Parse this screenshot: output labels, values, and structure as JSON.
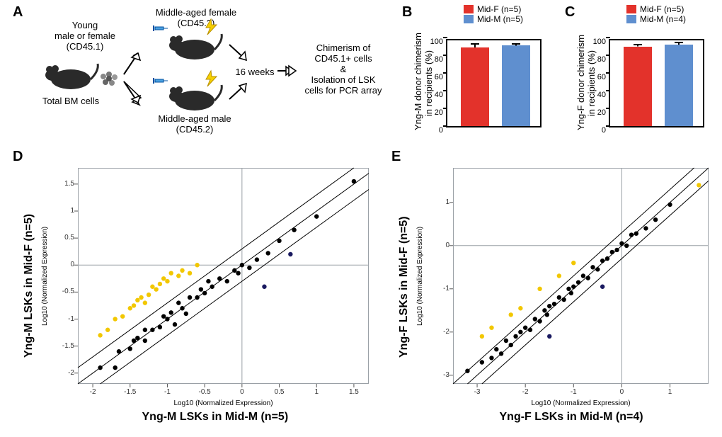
{
  "colors": {
    "red": "#e3322b",
    "blue": "#5f8fcf",
    "black": "#000000",
    "yellow": "#f2c700",
    "darkblue": "#1a1a60",
    "frame": "#9aa0a6",
    "bg": "#ffffff"
  },
  "labels": {
    "A": "A",
    "B": "B",
    "C": "C",
    "D": "D",
    "E": "E"
  },
  "panelA": {
    "donor_line1": "Young",
    "donor_line2": "male or female",
    "donor_line3": "(CD45.1)",
    "bm": "Total BM cells",
    "female_line1": "Middle-aged female",
    "female_line2": "(CD45.2)",
    "male_line1": "Middle-aged male",
    "male_line2": "(CD45.2)",
    "weeks": "16 weeks",
    "out_line1": "Chimerism of",
    "out_line2": "CD45.1+ cells",
    "out_line3": "&",
    "out_line4": "Isolation of LSK",
    "out_line5": "cells for PCR array"
  },
  "panelB": {
    "ylab": "Yng-M donor chimerism\nin recipients (%)",
    "legend": [
      {
        "label": "Mid-F (n=5)",
        "color": "#e3322b"
      },
      {
        "label": "Mid-M (n=5)",
        "color": "#5f8fcf"
      }
    ],
    "ymax": 100,
    "ytick": 20,
    "bars": [
      {
        "value": 89,
        "error": 4,
        "color": "#e3322b"
      },
      {
        "value": 91,
        "error": 2,
        "color": "#5f8fcf"
      }
    ]
  },
  "panelC": {
    "ylab": "Yng-F donor chimerism\nin recipients (%)",
    "legend": [
      {
        "label": "Mid-F (n=5)",
        "color": "#e3322b"
      },
      {
        "label": "Mid-M (n=4)",
        "color": "#5f8fcf"
      }
    ],
    "ymax": 100,
    "ytick": 20,
    "bars": [
      {
        "value": 90,
        "error": 2,
        "color": "#e3322b"
      },
      {
        "value": 92,
        "error": 2.5,
        "color": "#5f8fcf"
      }
    ]
  },
  "panelD": {
    "xlab": "Yng-M LSKs in Mid-M (n=5)",
    "ylab": "Yng-M LSKs in Mid-F (n=5)",
    "sub": "Log10 (Normalized Expression)",
    "xmin": -2.2,
    "xmax": 1.7,
    "ymin": -2.2,
    "ymax": 1.8,
    "ticks_x": [
      -2,
      -1.5,
      -1,
      -0.5,
      0,
      0.5,
      1,
      1.5
    ],
    "ticks_y": [
      -2,
      -1.5,
      -1,
      -0.5,
      0,
      0.5,
      1,
      1.5
    ],
    "points_black": [
      [
        -1.9,
        -1.9
      ],
      [
        -1.7,
        -1.9
      ],
      [
        -1.65,
        -1.6
      ],
      [
        -1.5,
        -1.55
      ],
      [
        -1.45,
        -1.4
      ],
      [
        -1.4,
        -1.35
      ],
      [
        -1.3,
        -1.4
      ],
      [
        -1.3,
        -1.2
      ],
      [
        -1.2,
        -1.2
      ],
      [
        -1.1,
        -1.15
      ],
      [
        -1.05,
        -0.95
      ],
      [
        -1.0,
        -1.0
      ],
      [
        -0.95,
        -0.88
      ],
      [
        -0.9,
        -1.1
      ],
      [
        -0.85,
        -0.7
      ],
      [
        -0.8,
        -0.8
      ],
      [
        -0.75,
        -0.9
      ],
      [
        -0.7,
        -0.6
      ],
      [
        -0.6,
        -0.6
      ],
      [
        -0.55,
        -0.45
      ],
      [
        -0.5,
        -0.52
      ],
      [
        -0.45,
        -0.3
      ],
      [
        -0.4,
        -0.4
      ],
      [
        -0.3,
        -0.25
      ],
      [
        -0.2,
        -0.3
      ],
      [
        -0.1,
        -0.1
      ],
      [
        -0.05,
        -0.15
      ],
      [
        0.0,
        0.0
      ],
      [
        0.1,
        -0.05
      ],
      [
        0.2,
        0.1
      ],
      [
        0.35,
        0.22
      ],
      [
        0.5,
        0.45
      ],
      [
        0.7,
        0.65
      ],
      [
        1.0,
        0.9
      ],
      [
        1.5,
        1.55
      ]
    ],
    "points_darkblue": [
      [
        0.3,
        -0.4
      ],
      [
        0.65,
        0.2
      ]
    ],
    "points_yellow": [
      [
        -1.9,
        -1.3
      ],
      [
        -1.8,
        -1.2
      ],
      [
        -1.7,
        -1.0
      ],
      [
        -1.6,
        -0.95
      ],
      [
        -1.5,
        -0.8
      ],
      [
        -1.45,
        -0.75
      ],
      [
        -1.4,
        -0.65
      ],
      [
        -1.35,
        -0.6
      ],
      [
        -1.3,
        -0.7
      ],
      [
        -1.25,
        -0.55
      ],
      [
        -1.2,
        -0.4
      ],
      [
        -1.15,
        -0.45
      ],
      [
        -1.1,
        -0.35
      ],
      [
        -1.05,
        -0.25
      ],
      [
        -1.0,
        -0.3
      ],
      [
        -0.95,
        -0.15
      ],
      [
        -0.85,
        -0.2
      ],
      [
        -0.8,
        -0.1
      ],
      [
        -0.7,
        -0.15
      ],
      [
        -0.6,
        0.0
      ]
    ]
  },
  "panelE": {
    "xlab": "Yng-F LSKs in Mid-M (n=4)",
    "ylab": "Yng-F LSKs in Mid-F (n=5)",
    "sub": "Log10 (Normalized Expression)",
    "xmin": -3.5,
    "xmax": 1.8,
    "ymin": -3.2,
    "ymax": 1.8,
    "ticks_x": [
      -3,
      -2,
      -1,
      0,
      1
    ],
    "ticks_y": [
      -3,
      -2,
      -1,
      0,
      1
    ],
    "points_black": [
      [
        -3.2,
        -2.9
      ],
      [
        -2.9,
        -2.7
      ],
      [
        -2.7,
        -2.6
      ],
      [
        -2.6,
        -2.4
      ],
      [
        -2.5,
        -2.5
      ],
      [
        -2.4,
        -2.2
      ],
      [
        -2.3,
        -2.3
      ],
      [
        -2.2,
        -2.1
      ],
      [
        -2.1,
        -2.0
      ],
      [
        -2.0,
        -1.9
      ],
      [
        -1.9,
        -1.95
      ],
      [
        -1.8,
        -1.7
      ],
      [
        -1.7,
        -1.75
      ],
      [
        -1.6,
        -1.5
      ],
      [
        -1.55,
        -1.6
      ],
      [
        -1.5,
        -1.4
      ],
      [
        -1.4,
        -1.35
      ],
      [
        -1.3,
        -1.2
      ],
      [
        -1.2,
        -1.25
      ],
      [
        -1.1,
        -1.0
      ],
      [
        -1.05,
        -1.1
      ],
      [
        -1.0,
        -0.95
      ],
      [
        -0.9,
        -0.85
      ],
      [
        -0.8,
        -0.7
      ],
      [
        -0.7,
        -0.75
      ],
      [
        -0.6,
        -0.5
      ],
      [
        -0.5,
        -0.55
      ],
      [
        -0.4,
        -0.35
      ],
      [
        -0.3,
        -0.3
      ],
      [
        -0.2,
        -0.15
      ],
      [
        -0.1,
        -0.1
      ],
      [
        0.0,
        0.05
      ],
      [
        0.1,
        0.0
      ],
      [
        0.2,
        0.25
      ],
      [
        0.3,
        0.28
      ],
      [
        0.5,
        0.4
      ],
      [
        0.7,
        0.6
      ],
      [
        1.0,
        0.95
      ]
    ],
    "points_darkblue": [
      [
        -1.5,
        -2.1
      ],
      [
        -0.4,
        -0.95
      ]
    ],
    "points_yellow": [
      [
        -2.9,
        -2.1
      ],
      [
        -2.7,
        -1.9
      ],
      [
        -2.3,
        -1.6
      ],
      [
        -2.1,
        -1.45
      ],
      [
        -1.7,
        -1.0
      ],
      [
        -1.3,
        -0.7
      ],
      [
        -1.0,
        -0.4
      ],
      [
        1.6,
        1.4
      ]
    ]
  }
}
